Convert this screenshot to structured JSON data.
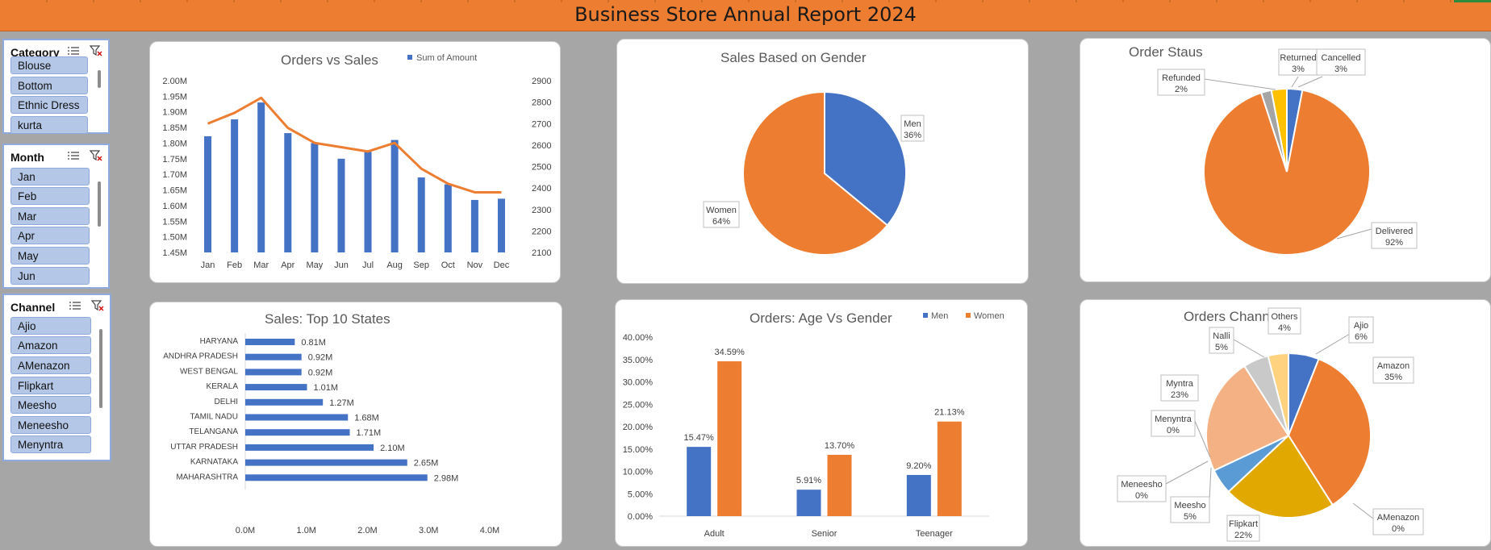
{
  "header": {
    "title": "Business Store Annual Report 2024"
  },
  "slicers": [
    {
      "name": "Category",
      "items": [
        "Blouse",
        "Bottom",
        "Ethnic Dress",
        "kurta"
      ]
    },
    {
      "name": "Month",
      "items": [
        "Jan",
        "Feb",
        "Mar",
        "Apr",
        "May",
        "Jun"
      ]
    },
    {
      "name": "Channel",
      "items": [
        "Ajio",
        "Amazon",
        "AMenazon",
        "Flipkart",
        "Meesho",
        "Meneesho",
        "Menyntra"
      ]
    }
  ],
  "colors": {
    "blue": "#4472c4",
    "orange": "#ed7d31",
    "gray": "#a5a5a5",
    "gold": "#ffc000",
    "darkgold": "#e0a800",
    "salmon": "#f4b183",
    "lightgray": "#c9c9c9",
    "sand": "#ffd280"
  },
  "chart_data": [
    {
      "id": "orders_vs_sales",
      "type": "bar",
      "title": "Orders vs Sales",
      "legend": "Sum of Amount",
      "categories": [
        "Jan",
        "Feb",
        "Mar",
        "Apr",
        "May",
        "Jun",
        "Jul",
        "Aug",
        "Sep",
        "Oct",
        "Nov",
        "Dec"
      ],
      "series": [
        {
          "name": "Sum of Amount",
          "type": "bar",
          "axis": "left",
          "values": [
            1.822,
            1.876,
            1.93,
            1.832,
            1.8,
            1.75,
            1.772,
            1.81,
            1.69,
            1.668,
            1.618,
            1.622
          ]
        },
        {
          "type": "line",
          "axis": "right",
          "values": [
            2700,
            2750,
            2820,
            2680,
            2610,
            2590,
            2570,
            2610,
            2490,
            2420,
            2380,
            2380
          ]
        }
      ],
      "left_ticks": [
        "2.00M",
        "1.95M",
        "1.90M",
        "1.85M",
        "1.80M",
        "1.75M",
        "1.70M",
        "1.65M",
        "1.60M",
        "1.55M",
        "1.50M",
        "1.45M"
      ],
      "right_ticks": [
        "2900",
        "2800",
        "2700",
        "2600",
        "2500",
        "2400",
        "2300",
        "2200",
        "2100"
      ],
      "ylim_left": [
        1.45,
        2.0
      ],
      "ylim_right": [
        2100,
        2900
      ]
    },
    {
      "id": "sales_gender",
      "type": "pie",
      "title": "Sales Based on Gender",
      "slices": [
        {
          "label": "Men",
          "value": 36,
          "text": "36%"
        },
        {
          "label": "Women",
          "value": 64,
          "text": "64%"
        }
      ]
    },
    {
      "id": "order_status",
      "type": "pie",
      "title": "Order Staus",
      "slices": [
        {
          "label": "Cancelled",
          "value": 3,
          "text": "3%"
        },
        {
          "label": "Delivered",
          "value": 92,
          "text": "92%"
        },
        {
          "label": "Refunded",
          "value": 2,
          "text": "2%"
        },
        {
          "label": "Returned",
          "value": 3,
          "text": "3%"
        }
      ]
    },
    {
      "id": "top_states",
      "type": "bar",
      "orientation": "horizontal",
      "title": "Sales: Top 10 States",
      "categories": [
        "HARYANA",
        "ANDHRA PRADESH",
        "WEST BENGAL",
        "KERALA",
        "DELHI",
        "TAMIL NADU",
        "TELANGANA",
        "UTTAR PRADESH",
        "KARNATAKA",
        "MAHARASHTRA"
      ],
      "values": [
        0.81,
        0.92,
        0.92,
        1.01,
        1.27,
        1.68,
        1.71,
        2.1,
        2.65,
        2.98
      ],
      "labels": [
        "0.81M",
        "0.92M",
        "0.92M",
        "1.01M",
        "1.27M",
        "1.68M",
        "1.71M",
        "2.10M",
        "2.65M",
        "2.98M"
      ],
      "xticks": [
        "0.0M",
        "1.0M",
        "2.0M",
        "3.0M",
        "4.0M"
      ],
      "xlim": [
        0,
        4
      ]
    },
    {
      "id": "age_gender",
      "type": "bar",
      "title": "Orders: Age Vs Gender",
      "categories": [
        "Adult",
        "Senior",
        "Teenager"
      ],
      "series": [
        {
          "name": "Men",
          "values": [
            15.47,
            5.91,
            9.2
          ],
          "labels": [
            "15.47%",
            "5.91%",
            "9.20%"
          ]
        },
        {
          "name": "Women",
          "values": [
            34.59,
            13.7,
            21.13
          ],
          "labels": [
            "34.59%",
            "13.70%",
            "21.13%"
          ]
        }
      ],
      "yticks": [
        "40.00%",
        "35.00%",
        "30.00%",
        "25.00%",
        "20.00%",
        "15.00%",
        "10.00%",
        "5.00%",
        "0.00%"
      ],
      "ylim": [
        0,
        40
      ]
    },
    {
      "id": "orders_channel",
      "type": "pie",
      "title": "Orders Channel",
      "slices": [
        {
          "label": "Ajio",
          "value": 6,
          "text": "6%"
        },
        {
          "label": "Amazon",
          "value": 35,
          "text": "35%"
        },
        {
          "label": "AMenazon",
          "value": 0,
          "text": "0%"
        },
        {
          "label": "Flipkart",
          "value": 22,
          "text": "22%"
        },
        {
          "label": "Meesho",
          "value": 5,
          "text": "5%"
        },
        {
          "label": "Meneesho",
          "value": 0,
          "text": "0%"
        },
        {
          "label": "Menyntra",
          "value": 0,
          "text": "0%"
        },
        {
          "label": "Myntra",
          "value": 23,
          "text": "23%"
        },
        {
          "label": "Nalli",
          "value": 5,
          "text": "5%"
        },
        {
          "label": "Others",
          "value": 4,
          "text": "4%"
        }
      ]
    }
  ]
}
